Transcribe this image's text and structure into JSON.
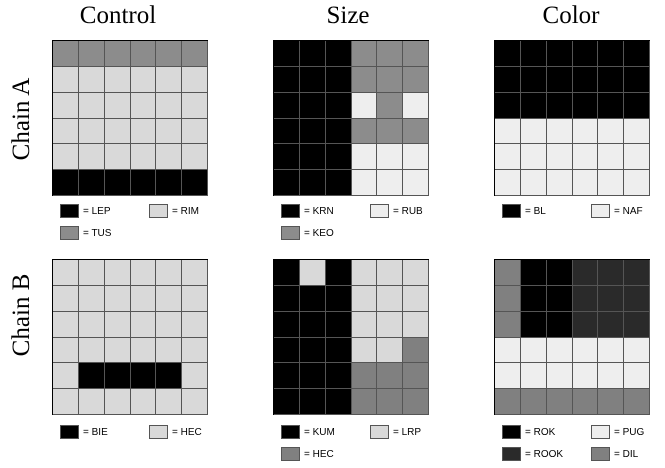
{
  "columns": [
    {
      "title": "Control"
    },
    {
      "title": "Size"
    },
    {
      "title": "Color"
    }
  ],
  "rows": [
    {
      "title": "Chain A"
    },
    {
      "title": "Chain B"
    }
  ],
  "colors": {
    "K": "#000000",
    "L": "#d9d9d9",
    "M": "#8c8c8c",
    "W": "#eeeeee",
    "D": "#2a2a2a",
    "G": "#808080"
  },
  "panels": [
    {
      "grid": [
        "MMMMMM",
        "LLLLLL",
        "LLLLLL",
        "LLLLLL",
        "LLLLLL",
        "KKKKKK"
      ],
      "legend": [
        {
          "color": "K",
          "label": "= LEP"
        },
        {
          "color": "L",
          "label": "= RIM"
        },
        {
          "color": "M",
          "label": "= TUS"
        }
      ]
    },
    {
      "grid": [
        "KKKMMM",
        "KKKMMM",
        "KKKWMW",
        "KKKMMM",
        "KKKWWW",
        "KKKWWW"
      ],
      "legend": [
        {
          "color": "K",
          "label": "= KRN"
        },
        {
          "color": "W",
          "label": "= RUB"
        },
        {
          "color": "M",
          "label": "= KEO"
        }
      ]
    },
    {
      "grid": [
        "KKKKKK",
        "KKKKKK",
        "KKKKKK",
        "WWWWWW",
        "WWWWWW",
        "WWWWWW"
      ],
      "legend": [
        {
          "color": "K",
          "label": "= BL"
        },
        {
          "color": "W",
          "label": "= NAF"
        }
      ]
    },
    {
      "grid": [
        "LLLLLL",
        "LLLLLL",
        "LLLLLL",
        "LLLLLL",
        "LKKKKL",
        "LLLLLL"
      ],
      "legend": [
        {
          "color": "K",
          "label": "= BIE"
        },
        {
          "color": "L",
          "label": "= HEC"
        }
      ]
    },
    {
      "grid": [
        "KLKLLL",
        "KKKLLL",
        "KKKLLL",
        "KKKLLG",
        "KKKGGG",
        "KKKGGG"
      ],
      "legend": [
        {
          "color": "K",
          "label": "= KUM"
        },
        {
          "color": "L",
          "label": "= LRP"
        },
        {
          "color": "G",
          "label": "= HEC"
        }
      ]
    },
    {
      "grid": [
        "GKKDDD",
        "GKKDDD",
        "GKKDDD",
        "WWWWWW",
        "WWWWWW",
        "GGGGGG"
      ],
      "legend": [
        {
          "color": "K",
          "label": "= ROK"
        },
        {
          "color": "W",
          "label": "= PUG"
        },
        {
          "color": "D",
          "label": "= ROOK"
        },
        {
          "color": "G",
          "label": "= DIL"
        }
      ]
    }
  ]
}
